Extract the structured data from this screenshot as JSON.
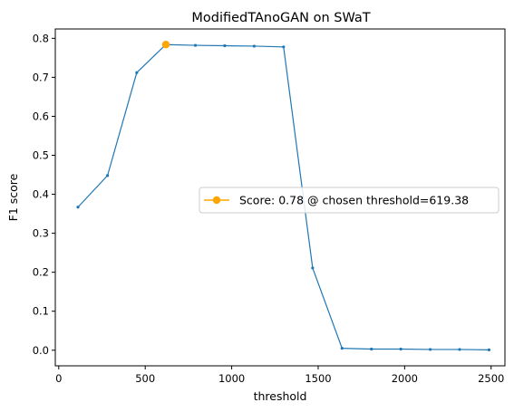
{
  "chart_data": {
    "type": "line",
    "title": "ModifiedTAnoGAN on SWaT",
    "xlabel": "threshold",
    "ylabel": "F1 score",
    "xlim": [
      -20,
      2580
    ],
    "ylim": [
      -0.04,
      0.824
    ],
    "xticks": [
      0,
      500,
      1000,
      1500,
      2000,
      2500
    ],
    "xtick_labels": [
      "0",
      "500",
      "1000",
      "1500",
      "2000",
      "2500"
    ],
    "yticks": [
      0.0,
      0.1,
      0.2,
      0.3,
      0.4,
      0.5,
      0.6,
      0.7,
      0.8
    ],
    "ytick_labels": [
      "0.0",
      "0.1",
      "0.2",
      "0.3",
      "0.4",
      "0.5",
      "0.6",
      "0.7",
      "0.8"
    ],
    "grid": false,
    "legend_position": "center-right",
    "series": [
      {
        "color": "#1f77b4",
        "x": [
          111,
          282,
          451,
          619.38,
          790,
          960,
          1130,
          1300,
          1468,
          1638,
          1808,
          1978,
          2148,
          2318,
          2488
        ],
        "y": [
          0.367,
          0.448,
          0.712,
          0.784,
          0.782,
          0.781,
          0.78,
          0.778,
          0.211,
          0.005,
          0.003,
          0.003,
          0.002,
          0.002,
          0.001
        ]
      }
    ],
    "highlight": {
      "name": "Score: 0.78 @ chosen threshold=619.38",
      "color": "#ffa500",
      "x": 619.38,
      "y": 0.784
    }
  }
}
